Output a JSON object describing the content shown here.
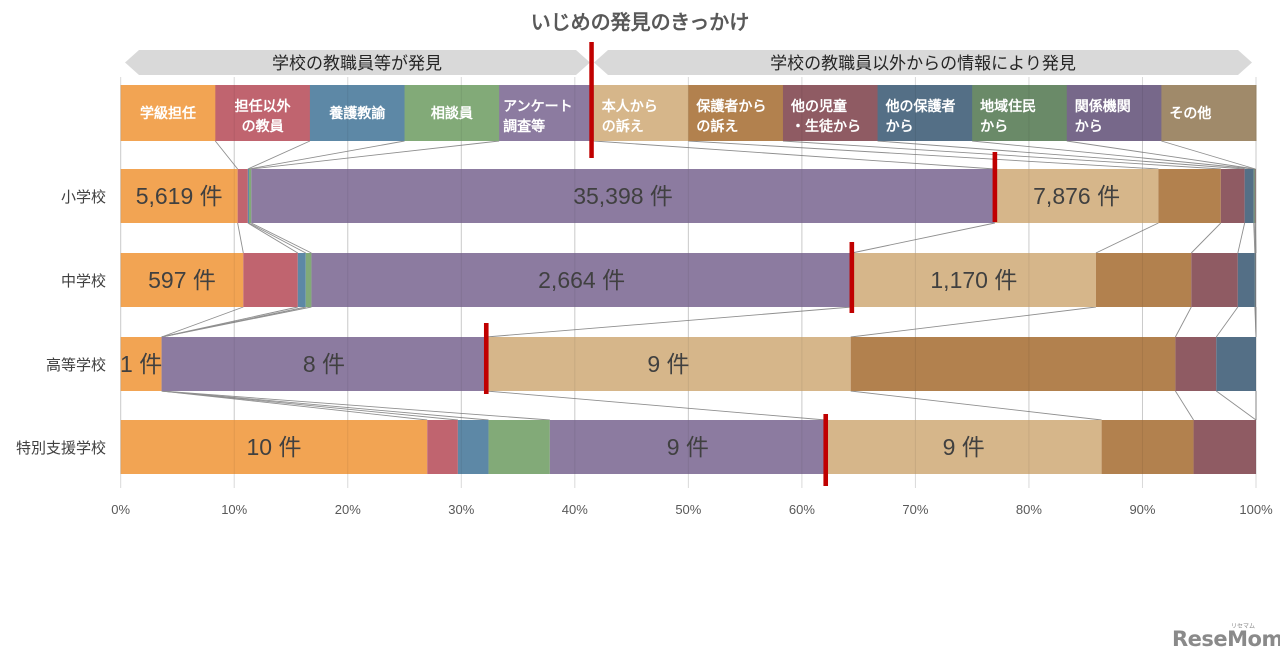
{
  "group_bands": [
    {
      "label": "学校の教職員等が発見"
    },
    {
      "label": "学校の教職員以外からの情報により発見"
    }
  ],
  "chart_data": {
    "type": "bar",
    "orientation": "horizontal",
    "stacking": "percent",
    "title": "いじめの発見のきっかけ",
    "xlabel": "",
    "ylabel": "",
    "xlim": [
      0,
      100
    ],
    "x_tick_values": [
      0,
      10,
      20,
      30,
      40,
      50,
      60,
      70,
      80,
      90,
      100
    ],
    "x_ticks": [
      "0%",
      "10%",
      "20%",
      "30%",
      "40%",
      "50%",
      "60%",
      "70%",
      "80%",
      "90%",
      "100%"
    ],
    "grid": true,
    "legend": "top (colored header row, grouped under two banners)",
    "categories": [
      "小学校",
      "中学校",
      "高等学校",
      "特別支援学校"
    ],
    "series": [
      {
        "name": "学級担任",
        "label_lines": [
          "学級担任"
        ],
        "group": 0,
        "color": "#F2A453",
        "values": [
          10.3,
          10.8,
          3.6,
          27.0
        ]
      },
      {
        "name": "担任以外の教員",
        "label_lines": [
          "担任以外",
          "の教員"
        ],
        "group": 0,
        "color": "#C0646F",
        "values": [
          0.9,
          4.8,
          0.0,
          2.7
        ]
      },
      {
        "name": "養護教諭",
        "label_lines": [
          "養護教諭"
        ],
        "group": 0,
        "color": "#5D88A6",
        "values": [
          0.1,
          0.7,
          0.0,
          2.7
        ]
      },
      {
        "name": "相談員",
        "label_lines": [
          "相談員"
        ],
        "group": 0,
        "color": "#82AA78",
        "values": [
          0.2,
          0.5,
          0.0,
          5.4
        ]
      },
      {
        "name": "アンケート調査等",
        "label_lines": [
          "アンケート",
          "調査等"
        ],
        "group": 0,
        "color": "#8C7BA0",
        "values": [
          65.5,
          47.6,
          28.6,
          24.3
        ]
      },
      {
        "name": "本人からの訴え",
        "label_lines": [
          "本人から",
          "の訴え"
        ],
        "group": 1,
        "color": "#D6B68A",
        "values": [
          14.4,
          21.5,
          32.1,
          24.3
        ]
      },
      {
        "name": "保護者からの訴え",
        "label_lines": [
          "保護者から",
          "の訴え"
        ],
        "group": 1,
        "color": "#B2814E",
        "values": [
          5.5,
          8.4,
          28.6,
          8.1
        ]
      },
      {
        "name": "他の児童・生徒から",
        "label_lines": [
          "他の児童",
          "・生徒から"
        ],
        "group": 1,
        "color": "#8F5B63",
        "values": [
          2.1,
          4.1,
          3.6,
          5.5
        ]
      },
      {
        "name": "他の保護者から",
        "label_lines": [
          "他の保護者",
          "から"
        ],
        "group": 1,
        "color": "#546F86",
        "values": [
          0.8,
          1.5,
          3.5,
          0.0
        ]
      },
      {
        "name": "地域住民から",
        "label_lines": [
          "地域住民",
          "から"
        ],
        "group": 1,
        "color": "#6A8A68",
        "values": [
          0.1,
          0.05,
          0.0,
          0.0
        ]
      },
      {
        "name": "関係機関から",
        "label_lines": [
          "関係機関",
          "から"
        ],
        "group": 1,
        "color": "#77688A",
        "values": [
          0.05,
          0.05,
          0.0,
          0.0
        ]
      },
      {
        "name": "その他",
        "label_lines": [
          "その他"
        ],
        "group": 1,
        "color": "#A08A6A",
        "values": [
          0.05,
          0.0,
          0.0,
          0.0
        ]
      }
    ],
    "data_labels": [
      [
        {
          "series": 0,
          "text": "5,619 件"
        },
        {
          "series": 4,
          "text": "35,398 件"
        },
        {
          "series": 5,
          "text": "7,876 件"
        }
      ],
      [
        {
          "series": 0,
          "text": "597 件"
        },
        {
          "series": 4,
          "text": "2,664 件"
        },
        {
          "series": 5,
          "text": "1,170 件"
        }
      ],
      [
        {
          "series": 0,
          "text": "1 件"
        },
        {
          "series": 4,
          "text": "8 件"
        },
        {
          "series": 5,
          "text": "9 件"
        }
      ],
      [
        {
          "series": 0,
          "text": "10 件"
        },
        {
          "series": 4,
          "text": "9 件"
        },
        {
          "series": 5,
          "text": "9 件"
        }
      ]
    ],
    "group_split_marker": {
      "after_series": 4,
      "color": "#C00000"
    },
    "connector_line_color": "#8f8f8f",
    "gridline_color": "#d9d9d9"
  },
  "logo": {
    "text": "ReseMom",
    "kana": "リセマム"
  }
}
